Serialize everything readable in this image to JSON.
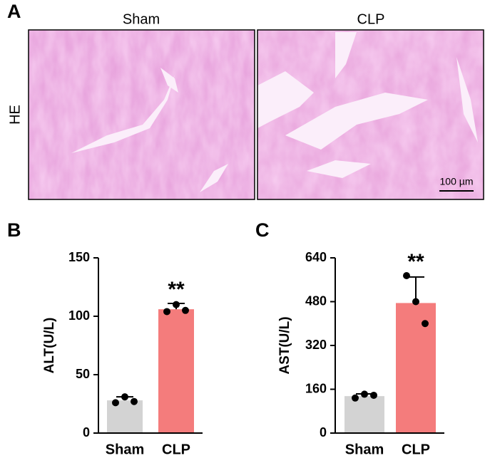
{
  "figure": {
    "panel": "A",
    "columns": [
      "Sham",
      "CLP"
    ],
    "row_label": "HE",
    "scale_bar": "100 µm"
  },
  "chart_data": [
    {
      "type": "bar",
      "panel": "B",
      "y_label": "ALT(U/L)",
      "categories": [
        "Sham",
        "CLP"
      ],
      "values": [
        28,
        106
      ],
      "errors": [
        3,
        5
      ],
      "points": [
        [
          26,
          31,
          27
        ],
        [
          104,
          110,
          105
        ]
      ],
      "colors": [
        "#d3d3d3",
        "#f47c7c"
      ],
      "ylim": [
        0,
        150
      ],
      "yticks": [
        0,
        50,
        100,
        150
      ],
      "annotations": [
        {
          "text": "**",
          "category": "CLP"
        }
      ]
    },
    {
      "type": "bar",
      "panel": "C",
      "y_label": "AST(U/L)",
      "categories": [
        "Sham",
        "CLP"
      ],
      "values": [
        135,
        475
      ],
      "errors": [
        8,
        95
      ],
      "points": [
        [
          128,
          142,
          138
        ],
        [
          575,
          480,
          400
        ]
      ],
      "colors": [
        "#d3d3d3",
        "#f47c7c"
      ],
      "ylim": [
        0,
        640
      ],
      "yticks": [
        0,
        160,
        320,
        480,
        640
      ],
      "annotations": [
        {
          "text": "**",
          "category": "CLP"
        }
      ]
    }
  ]
}
